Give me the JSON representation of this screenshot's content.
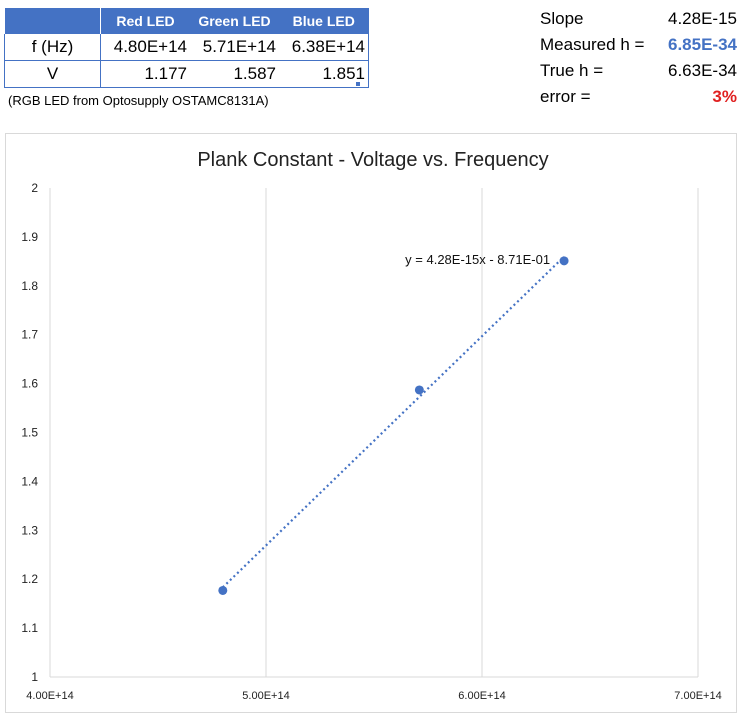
{
  "table": {
    "headers": [
      "",
      "Red LED",
      "Green LED",
      "Blue LED"
    ],
    "rows": [
      {
        "label": "f (Hz)",
        "values": [
          "4.80E+14",
          "5.71E+14",
          "6.38E+14"
        ]
      },
      {
        "label": "V",
        "values": [
          "1.177",
          "1.587",
          "1.851"
        ]
      }
    ],
    "note": "(RGB LED from Optosupply OSTAMC8131A)"
  },
  "stats": {
    "slope_label": "Slope",
    "slope_value": "4.28E-15",
    "measured_label": "Measured h =",
    "measured_value": "6.85E-34",
    "true_label": "True h =",
    "true_value": "6.63E-34",
    "error_label": "error =",
    "error_value": "3%"
  },
  "colors": {
    "accent": "#4472c4",
    "error": "#e02020",
    "grid": "#d9d9d9"
  },
  "chart_data": {
    "type": "scatter",
    "title": "Plank Constant - Voltage vs. Frequency",
    "xlabel": "",
    "ylabel": "",
    "xlim": [
      400000000000000.0,
      700000000000000.0
    ],
    "ylim": [
      1,
      2
    ],
    "x_ticks": [
      400000000000000.0,
      500000000000000.0,
      600000000000000.0,
      700000000000000.0
    ],
    "x_tick_labels": [
      "4.00E+14",
      "5.00E+14",
      "6.00E+14",
      "7.00E+14"
    ],
    "y_ticks": [
      1,
      1.1,
      1.2,
      1.3,
      1.4,
      1.5,
      1.6,
      1.7,
      1.8,
      1.9,
      2
    ],
    "y_tick_labels": [
      "1",
      "1.1",
      "1.2",
      "1.3",
      "1.4",
      "1.5",
      "1.6",
      "1.7",
      "1.8",
      "1.9",
      "2"
    ],
    "grid": "vertical",
    "series": [
      {
        "x": [
          480000000000000.0,
          571000000000000.0,
          638000000000000.0
        ],
        "y": [
          1.177,
          1.587,
          1.851
        ]
      }
    ],
    "trendline": {
      "type": "linear",
      "slope": 4.28e-15,
      "intercept": -0.871,
      "style": "dotted",
      "label": "y = 4.28E-15x - 8.71E-01"
    }
  }
}
